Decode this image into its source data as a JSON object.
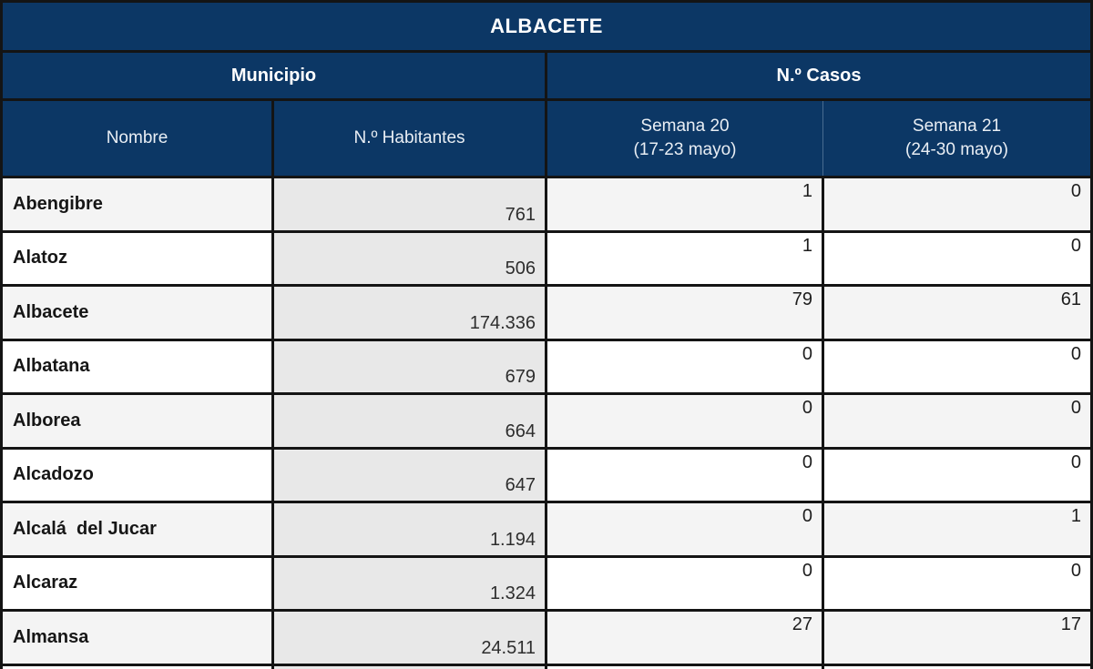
{
  "table": {
    "title": "ALBACETE",
    "groups": {
      "municipio": "Municipio",
      "casos": "N.º Casos"
    },
    "columns": {
      "nombre": "Nombre",
      "habitantes": "N.º Habitantes",
      "semana20_line1": "Semana 20",
      "semana20_line2": "(17-23 mayo)",
      "semana21_line1": "Semana 21",
      "semana21_line2": "(24-30 mayo)"
    },
    "rows": [
      {
        "name": "Abengibre",
        "habitantes": "761",
        "semana20": "1",
        "semana21": "0"
      },
      {
        "name": "Alatoz",
        "habitantes": "506",
        "semana20": "1",
        "semana21": "0"
      },
      {
        "name": "Albacete",
        "habitantes": "174.336",
        "semana20": "79",
        "semana21": "61"
      },
      {
        "name": "Albatana",
        "habitantes": "679",
        "semana20": "0",
        "semana21": "0"
      },
      {
        "name": "Alborea",
        "habitantes": "664",
        "semana20": "0",
        "semana21": "0"
      },
      {
        "name": "Alcadozo",
        "habitantes": "647",
        "semana20": "0",
        "semana21": "0"
      },
      {
        "name": "Alcalá  del Jucar",
        "habitantes": "1.194",
        "semana20": "0",
        "semana21": "1"
      },
      {
        "name": "Alcaraz",
        "habitantes": "1.324",
        "semana20": "0",
        "semana21": "0"
      },
      {
        "name": "Almansa",
        "habitantes": "24.511",
        "semana20": "27",
        "semana21": "17"
      }
    ]
  },
  "colors": {
    "header_navy": "#0c3765",
    "grid_line": "#141414",
    "row_alt_gray": "#f4f4f4",
    "habitantes_gray": "#e8e8e8"
  }
}
